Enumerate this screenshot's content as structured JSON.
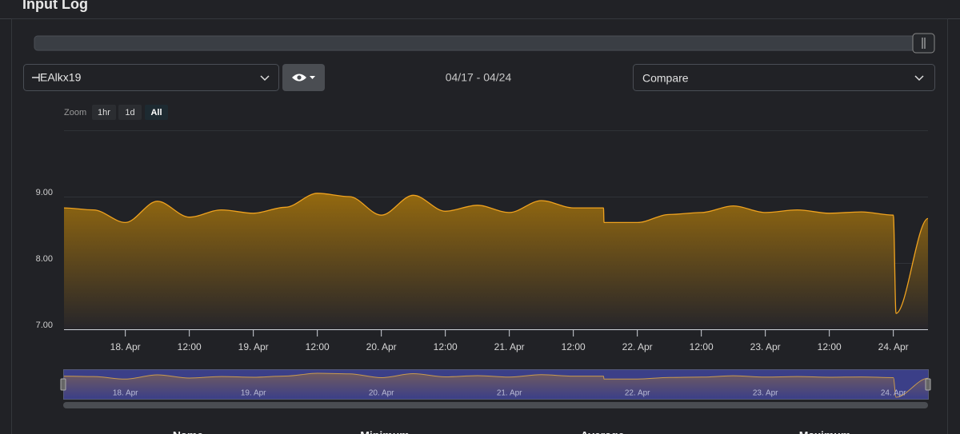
{
  "header": {
    "title": "Input Log"
  },
  "controls": {
    "device": "EAlkx19",
    "date_range": "04/17 - 04/24",
    "compare": "Compare",
    "zoom_label": "Zoom",
    "zoom_options": [
      "1hr",
      "1d",
      "All"
    ],
    "zoom_active_index": 2
  },
  "chart_data": {
    "type": "area",
    "color": "#f0a31f",
    "grid": true,
    "x": [
      "04-17T12:30",
      "04-17T18:00",
      "04-18T00:00",
      "04-18T06:00",
      "04-18T12:00",
      "04-18T18:00",
      "04-19T00:00",
      "04-19T06:00",
      "04-19T12:00",
      "04-19T18:00",
      "04-20T00:00",
      "04-20T06:00",
      "04-20T12:00",
      "04-20T18:00",
      "04-21T00:00",
      "04-21T06:00",
      "04-21T12:00",
      "04-21T17:40",
      "04-21T17:45",
      "04-22T00:00",
      "04-22T06:00",
      "04-22T12:00",
      "04-22T18:00",
      "04-23T00:00",
      "04-23T06:00",
      "04-23T12:00",
      "04-23T18:00",
      "04-24T00:00",
      "04-24T00:30",
      "04-24T06:30"
    ],
    "values": [
      8.83,
      8.8,
      8.61,
      8.93,
      8.69,
      8.8,
      8.75,
      8.84,
      9.05,
      9.0,
      8.72,
      9.02,
      8.78,
      8.87,
      8.76,
      8.94,
      8.83,
      8.83,
      8.61,
      8.61,
      8.73,
      8.76,
      8.86,
      8.76,
      8.8,
      8.75,
      8.77,
      8.72,
      7.24,
      8.67
    ],
    "ylim": [
      7,
      10
    ],
    "yticks": [
      {
        "value": 7,
        "label": "7.00"
      },
      {
        "value": 8,
        "label": "8.00"
      },
      {
        "value": 9,
        "label": "9.00"
      }
    ],
    "xlim": [
      "04-17T12:30",
      "04-24T06:30"
    ],
    "xticks": [
      {
        "value": "04-18T00:00",
        "label": "18. Apr"
      },
      {
        "value": "04-18T12:00",
        "label": "12:00"
      },
      {
        "value": "04-19T00:00",
        "label": "19. Apr"
      },
      {
        "value": "04-19T12:00",
        "label": "12:00"
      },
      {
        "value": "04-20T00:00",
        "label": "20. Apr"
      },
      {
        "value": "04-20T12:00",
        "label": "12:00"
      },
      {
        "value": "04-21T00:00",
        "label": "21. Apr"
      },
      {
        "value": "04-21T12:00",
        "label": "12:00"
      },
      {
        "value": "04-22T00:00",
        "label": "22. Apr"
      },
      {
        "value": "04-22T12:00",
        "label": "12:00"
      },
      {
        "value": "04-23T00:00",
        "label": "23. Apr"
      },
      {
        "value": "04-23T12:00",
        "label": "12:00"
      },
      {
        "value": "04-24T00:00",
        "label": "24. Apr"
      }
    ]
  },
  "stats_table": {
    "columns": [
      "Name",
      "Minimum",
      "Average",
      "Maximum"
    ]
  }
}
